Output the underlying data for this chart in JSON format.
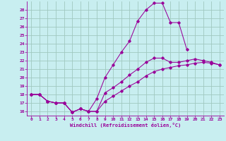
{
  "xlabel": "Windchill (Refroidissement éolien,°C)",
  "background_color": "#c8eef0",
  "grid_color": "#a0c8c0",
  "line_color": "#990099",
  "xlim": [
    -0.5,
    23.5
  ],
  "ylim": [
    15.5,
    29.0
  ],
  "xticks": [
    0,
    1,
    2,
    3,
    4,
    5,
    6,
    7,
    8,
    9,
    10,
    11,
    12,
    13,
    14,
    15,
    16,
    17,
    18,
    19,
    20,
    21,
    22,
    23
  ],
  "yticks": [
    16,
    17,
    18,
    19,
    20,
    21,
    22,
    23,
    24,
    25,
    26,
    27,
    28
  ],
  "series": [
    [
      18.0,
      18.0,
      17.2,
      17.0,
      17.0,
      15.9,
      16.3,
      16.0,
      17.5,
      20.0,
      21.5,
      23.0,
      24.3,
      26.7,
      28.0,
      28.8,
      28.8,
      26.5,
      26.5,
      23.3,
      null,
      null,
      null,
      null
    ],
    [
      18.0,
      18.0,
      17.2,
      17.0,
      17.0,
      15.9,
      16.3,
      16.0,
      16.0,
      18.2,
      18.8,
      19.5,
      20.3,
      21.0,
      21.8,
      22.3,
      22.3,
      21.8,
      21.8,
      22.0,
      22.2,
      22.0,
      21.8,
      21.5
    ],
    [
      18.0,
      18.0,
      17.2,
      17.0,
      17.0,
      15.9,
      16.3,
      16.0,
      16.0,
      17.2,
      17.8,
      18.4,
      19.0,
      19.5,
      20.2,
      20.7,
      21.0,
      21.2,
      21.4,
      21.5,
      21.7,
      21.8,
      21.7,
      21.5
    ]
  ],
  "series1_extra": [
    [
      19,
      23.3
    ],
    [
      20,
      null
    ],
    [
      21,
      null
    ],
    [
      22,
      null
    ],
    [
      23,
      null
    ]
  ],
  "curve1_x": [
    0,
    1,
    2,
    3,
    4,
    5,
    6,
    7,
    8,
    9,
    10,
    11,
    12,
    13,
    14,
    15,
    16,
    17,
    18,
    19
  ],
  "curve1_y": [
    18.0,
    18.0,
    17.2,
    17.0,
    17.0,
    15.9,
    16.3,
    16.0,
    17.5,
    20.0,
    21.5,
    23.0,
    24.3,
    26.7,
    28.0,
    28.8,
    28.8,
    26.5,
    26.5,
    23.3
  ],
  "curve2_x": [
    0,
    1,
    2,
    3,
    4,
    5,
    6,
    7,
    8,
    9,
    10,
    11,
    12,
    13,
    14,
    15,
    16,
    17,
    18,
    19,
    20,
    21,
    22,
    23
  ],
  "curve2_y": [
    18.0,
    18.0,
    17.2,
    17.0,
    17.0,
    15.9,
    16.3,
    16.0,
    16.0,
    18.2,
    18.8,
    19.5,
    20.3,
    21.0,
    21.8,
    22.3,
    22.3,
    21.8,
    21.8,
    22.0,
    22.2,
    22.0,
    21.8,
    21.5
  ],
  "curve3_x": [
    0,
    1,
    2,
    3,
    4,
    5,
    6,
    7,
    8,
    9,
    10,
    11,
    12,
    13,
    14,
    15,
    16,
    17,
    18,
    19,
    20,
    21,
    22,
    23
  ],
  "curve3_y": [
    18.0,
    18.0,
    17.2,
    17.0,
    17.0,
    15.9,
    16.3,
    16.0,
    16.0,
    17.2,
    17.8,
    18.4,
    19.0,
    19.5,
    20.2,
    20.7,
    21.0,
    21.2,
    21.4,
    21.5,
    21.7,
    21.8,
    21.7,
    21.5
  ]
}
